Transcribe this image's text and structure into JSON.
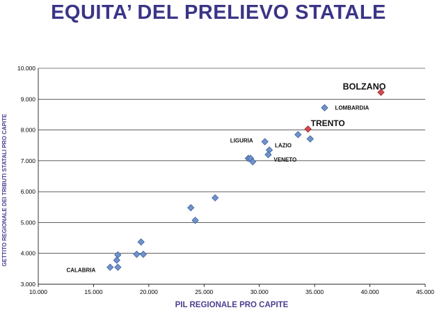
{
  "slide": {
    "title": "EQUITA’ DEL PRELIEVO STATALE"
  },
  "colors": {
    "title": "#3b3587",
    "axis_title": "#4a3f8f",
    "point": "#6f93cc",
    "point_stroke": "#3d5f9a",
    "highlight": "#d9484f",
    "highlight_stroke": "#8e2a2e",
    "grid": "#000000"
  },
  "chart_data": {
    "type": "scatter",
    "xlabel": "PIL REGIONALE PRO CAPITE",
    "ylabel": "GETTITO REGIONALE DEI TRIBUTI STATALI PRO CAPITE",
    "xlim": [
      10000,
      45000
    ],
    "ylim": [
      3000,
      10000
    ],
    "x_ticks": [
      "10.000",
      "15.000",
      "20.000",
      "25.000",
      "30.000",
      "35.000",
      "40.000",
      "45.000"
    ],
    "y_ticks": [
      "3.000",
      "4.000",
      "5.000",
      "6.000",
      "7.000",
      "8.000",
      "9.000",
      "10.000"
    ],
    "grid": "horizontal",
    "points": [
      {
        "x": 16500,
        "y": 3550,
        "label": "CALABRIA"
      },
      {
        "x": 17200,
        "y": 3550
      },
      {
        "x": 17100,
        "y": 3780
      },
      {
        "x": 17200,
        "y": 3950
      },
      {
        "x": 18900,
        "y": 3970
      },
      {
        "x": 19500,
        "y": 3970
      },
      {
        "x": 19300,
        "y": 4370
      },
      {
        "x": 23800,
        "y": 5480
      },
      {
        "x": 24200,
        "y": 5070
      },
      {
        "x": 26000,
        "y": 5800
      },
      {
        "x": 29000,
        "y": 7080
      },
      {
        "x": 29200,
        "y": 7080
      },
      {
        "x": 29400,
        "y": 6970
      },
      {
        "x": 30500,
        "y": 7620,
        "label": "LIGURIA"
      },
      {
        "x": 30900,
        "y": 7350,
        "label": "LAZIO"
      },
      {
        "x": 30800,
        "y": 7200,
        "label": "VENETO"
      },
      {
        "x": 33500,
        "y": 7850
      },
      {
        "x": 34600,
        "y": 7710
      },
      {
        "x": 35900,
        "y": 8720,
        "label": "LOMBARDIA"
      },
      {
        "x": 34400,
        "y": 8030,
        "label": "TRENTO",
        "highlight": true
      },
      {
        "x": 41000,
        "y": 9220,
        "label": "BOLZANO",
        "highlight": true
      }
    ]
  }
}
